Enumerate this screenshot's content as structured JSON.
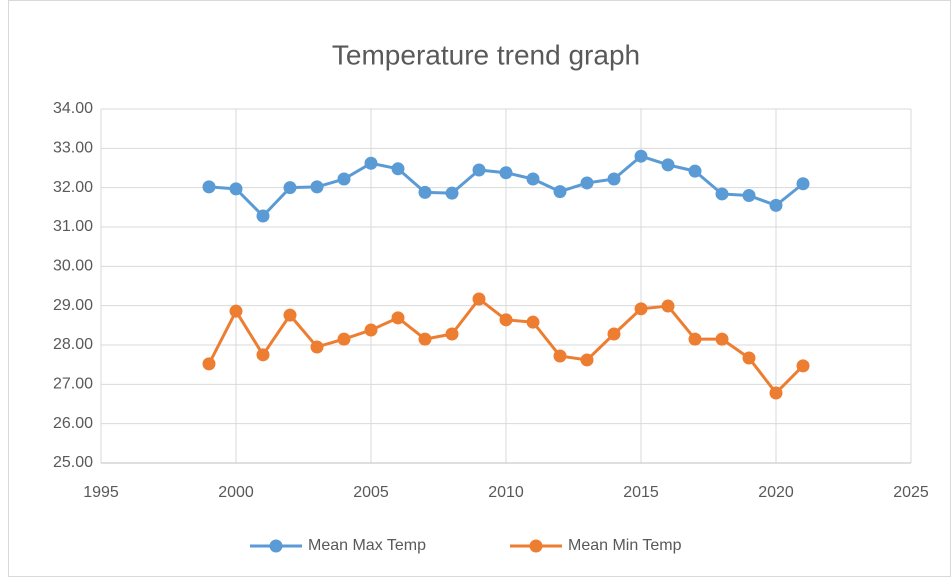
{
  "chart_data": {
    "type": "line",
    "title": "Temperature trend graph",
    "x": [
      1999,
      2000,
      2001,
      2002,
      2003,
      2004,
      2005,
      2006,
      2007,
      2008,
      2009,
      2010,
      2011,
      2012,
      2013,
      2014,
      2015,
      2016,
      2017,
      2018,
      2019,
      2020,
      2021
    ],
    "series": [
      {
        "name": "Mean Max Temp",
        "color": "#5b9bd5",
        "values": [
          32.02,
          31.97,
          31.28,
          32.0,
          32.02,
          32.22,
          32.62,
          32.48,
          31.88,
          31.86,
          32.45,
          32.38,
          32.22,
          31.9,
          32.12,
          32.22,
          32.8,
          32.58,
          32.42,
          31.84,
          31.8,
          31.55,
          32.1
        ]
      },
      {
        "name": "Mean Min Temp",
        "color": "#ed7d31",
        "values": [
          27.52,
          28.86,
          27.75,
          28.76,
          27.95,
          28.15,
          28.38,
          28.69,
          28.15,
          28.28,
          29.17,
          28.64,
          28.58,
          27.72,
          27.62,
          28.28,
          28.92,
          28.99,
          28.15,
          28.15,
          27.67,
          26.78,
          27.47
        ]
      }
    ],
    "xlim": [
      1995,
      2025
    ],
    "xticks": [
      1995,
      2000,
      2005,
      2010,
      2015,
      2020,
      2025
    ],
    "ylim": [
      25,
      34
    ],
    "yticks": [
      {
        "value": 25,
        "label": "25.00"
      },
      {
        "value": 26,
        "label": "26.00"
      },
      {
        "value": 27,
        "label": "27.00"
      },
      {
        "value": 28,
        "label": "28.00"
      },
      {
        "value": 29,
        "label": "29.00"
      },
      {
        "value": 30,
        "label": "30.00"
      },
      {
        "value": 31,
        "label": "31.00"
      },
      {
        "value": 32,
        "label": "32.00"
      },
      {
        "value": 33,
        "label": "33.00"
      },
      {
        "value": 34,
        "label": "34.00"
      }
    ],
    "grid": true,
    "legend": "bottom"
  }
}
